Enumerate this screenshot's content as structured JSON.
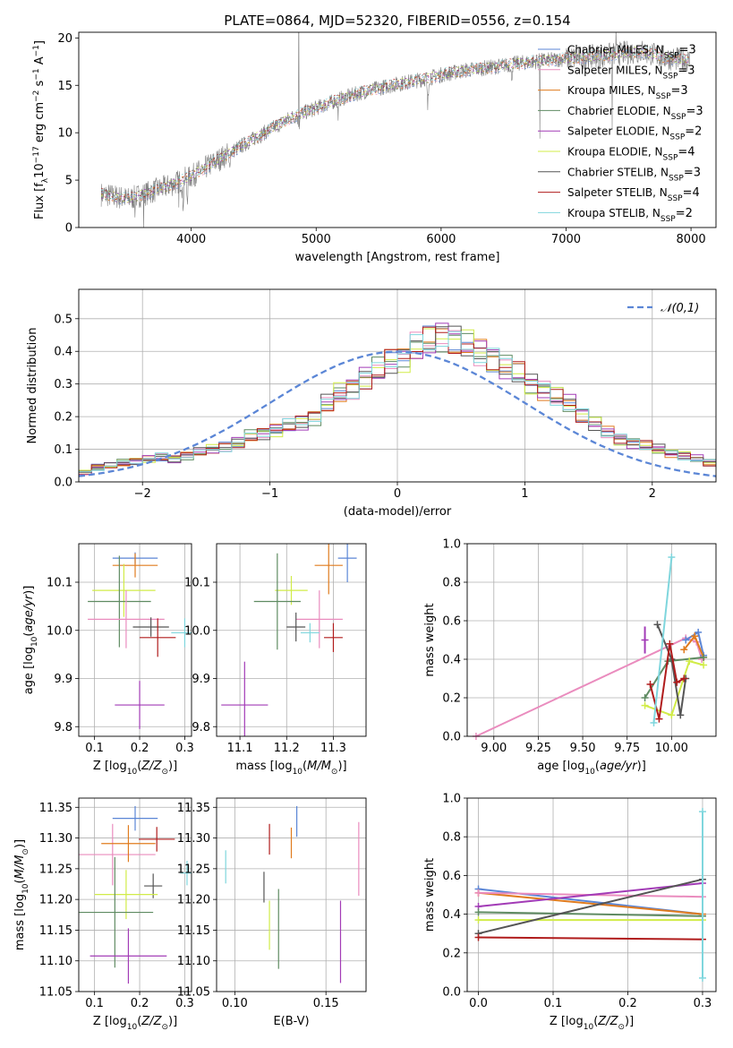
{
  "figure_title": "PLATE=0864, MJD=52320, FIBERID=0556, z=0.154",
  "colors": {
    "Chabrier MILES": "#5b86d6",
    "Salpeter MILES": "#ea8cbe",
    "Kroupa MILES": "#e07b1e",
    "Chabrier ELODIE": "#5f8b62",
    "Salpeter ELODIE": "#a23bb6",
    "Kroupa ELODIE": "#d1ec48",
    "Chabrier STELIB": "#555555",
    "Salpeter STELIB": "#b01c1c",
    "Kroupa STELIB": "#7fd6dd",
    "normal": "#5b86d6",
    "data": "#808080"
  },
  "chart_data": [
    {
      "id": "spectrum",
      "type": "line",
      "title": "PLATE=0864, MJD=52320, FIBERID=0556, z=0.154",
      "xlabel": "wavelength [Angstrom, rest frame]",
      "ylabel": "Flux [f_λ 10^-17 erg cm^-2 s^-1 A^-1]",
      "xlim": [
        3100,
        8200
      ],
      "ylim": [
        0,
        20.6
      ],
      "xticks": [
        4000,
        5000,
        6000,
        7000,
        8000
      ],
      "yticks": [
        0,
        5,
        10,
        15,
        20
      ],
      "grid": false,
      "legend": "top-right",
      "series": [
        {
          "name": "Chabrier MILES, N_SSP=3"
        },
        {
          "name": "Salpeter MILES, N_SSP=3"
        },
        {
          "name": "Kroupa MILES, N_SSP=3"
        },
        {
          "name": "Chabrier ELODIE, N_SSP=3"
        },
        {
          "name": "Salpeter ELODIE, N_SSP=2"
        },
        {
          "name": "Kroupa ELODIE, N_SSP=4"
        },
        {
          "name": "Chabrier STELIB, N_SSP=3"
        },
        {
          "name": "Salpeter STELIB, N_SSP=4"
        },
        {
          "name": "Kroupa STELIB, N_SSP=2"
        }
      ],
      "continuum": {
        "x": [
          3300,
          3500,
          3800,
          4000,
          4200,
          4400,
          4600,
          4800,
          5000,
          5200,
          5400,
          5600,
          5800,
          6000,
          6200,
          6400,
          6600,
          6800,
          7000,
          7200,
          7400,
          7600,
          7800,
          8000
        ],
        "y": [
          3.5,
          3.0,
          4.3,
          5.4,
          7.0,
          8.6,
          10.1,
          11.6,
          12.6,
          13.6,
          14.4,
          15.0,
          15.5,
          16.1,
          16.6,
          16.9,
          17.3,
          17.6,
          17.8,
          18.0,
          18.3,
          18.6,
          17.9,
          17.6
        ]
      }
    },
    {
      "id": "residuals",
      "type": "step",
      "xlabel": "(data-model)/error",
      "ylabel": "Normed distribution",
      "xlim": [
        -2.5,
        2.5
      ],
      "ylim": [
        0,
        0.59
      ],
      "xticks": [
        -2,
        -1,
        0,
        1,
        2
      ],
      "yticks": [
        0.0,
        0.1,
        0.2,
        0.3,
        0.4,
        0.5
      ],
      "grid": true,
      "legend": "top-right",
      "legend_label": "𝒩(0,1)",
      "bin_width": 0.1,
      "x_start": -2.5,
      "base_values": [
        0.03,
        0.045,
        0.05,
        0.06,
        0.065,
        0.07,
        0.075,
        0.07,
        0.08,
        0.09,
        0.1,
        0.11,
        0.12,
        0.14,
        0.15,
        0.16,
        0.17,
        0.18,
        0.2,
        0.24,
        0.27,
        0.29,
        0.32,
        0.34,
        0.37,
        0.38,
        0.41,
        0.43,
        0.45,
        0.44,
        0.42,
        0.4,
        0.38,
        0.35,
        0.33,
        0.3,
        0.28,
        0.26,
        0.24,
        0.21,
        0.18,
        0.15,
        0.13,
        0.12,
        0.11,
        0.1,
        0.09,
        0.08,
        0.07,
        0.06,
        0.055,
        0.05,
        0.045,
        0.04,
        0.038,
        0.035,
        0.03,
        0.028,
        0.025,
        0.02
      ]
    },
    {
      "id": "age_vs_Z",
      "type": "errorbar",
      "xlabel": "Z [log10(Z/Z⊙)]",
      "ylabel": "age [log10(age/yr)]",
      "xlim": [
        0.065,
        0.315
      ],
      "ylim": [
        9.78,
        10.18
      ],
      "xticks": [
        0.1,
        0.2,
        0.3
      ],
      "yticks": [
        9.8,
        9.9,
        10.0,
        10.1
      ],
      "grid": true,
      "points": [
        {
          "s": "Chabrier MILES",
          "x": 0.19,
          "xerr": 0.05,
          "y": 10.15,
          "yerr": 0.012
        },
        {
          "s": "Kroupa MILES",
          "x": 0.19,
          "xerr": 0.05,
          "y": 10.135,
          "yerr": 0.025
        },
        {
          "s": "Kroupa ELODIE",
          "x": 0.165,
          "xerr": 0.07,
          "y": 10.083,
          "yerr": 0.055
        },
        {
          "s": "Chabrier ELODIE",
          "x": 0.155,
          "xerr": 0.07,
          "y": 10.06,
          "yerr": 0.095
        },
        {
          "s": "Salpeter MILES",
          "x": 0.17,
          "xerr": 0.085,
          "y": 10.023,
          "yerr": 0.06
        },
        {
          "s": "Chabrier STELIB",
          "x": 0.225,
          "xerr": 0.04,
          "y": 10.007,
          "yerr": 0.02
        },
        {
          "s": "Salpeter STELIB",
          "x": 0.24,
          "xerr": 0.04,
          "y": 9.985,
          "yerr": 0.04
        },
        {
          "s": "Kroupa STELIB",
          "x": 0.3,
          "xerr": 0.03,
          "y": 9.995,
          "yerr": 0.03
        },
        {
          "s": "Salpeter ELODIE",
          "x": 0.2,
          "xerr": 0.055,
          "y": 9.845,
          "yerr": 0.05
        }
      ]
    },
    {
      "id": "age_vs_mass",
      "type": "errorbar",
      "xlabel": "mass [log10(M/M⊙)]",
      "ylabel": "",
      "xlim": [
        11.05,
        11.37
      ],
      "ylim": [
        9.78,
        10.18
      ],
      "xticks": [
        11.1,
        11.2,
        11.3
      ],
      "yticks": [
        9.8,
        9.9,
        10.0,
        10.1
      ],
      "grid": true,
      "points": [
        {
          "s": "Chabrier MILES",
          "x": 11.33,
          "xerr": 0.02,
          "y": 10.15,
          "yerr": 0.05
        },
        {
          "s": "Kroupa MILES",
          "x": 11.29,
          "xerr": 0.03,
          "y": 10.135,
          "yerr": 0.06
        },
        {
          "s": "Kroupa ELODIE",
          "x": 11.21,
          "xerr": 0.035,
          "y": 10.083,
          "yerr": 0.03
        },
        {
          "s": "Chabrier ELODIE",
          "x": 11.18,
          "xerr": 0.05,
          "y": 10.06,
          "yerr": 0.1
        },
        {
          "s": "Salpeter MILES",
          "x": 11.27,
          "xerr": 0.05,
          "y": 10.023,
          "yerr": 0.06
        },
        {
          "s": "Chabrier STELIB",
          "x": 11.22,
          "xerr": 0.02,
          "y": 10.007,
          "yerr": 0.03
        },
        {
          "s": "Salpeter STELIB",
          "x": 11.3,
          "xerr": 0.02,
          "y": 9.985,
          "yerr": 0.03
        },
        {
          "s": "Kroupa STELIB",
          "x": 11.25,
          "xerr": 0.02,
          "y": 9.995,
          "yerr": 0.02
        },
        {
          "s": "Salpeter ELODIE",
          "x": 11.11,
          "xerr": 0.05,
          "y": 9.845,
          "yerr": 0.09
        }
      ]
    },
    {
      "id": "weight_vs_age",
      "type": "line",
      "xlabel": "age [log10(age/yr)]",
      "ylabel": "mass weight",
      "xlim": [
        8.85,
        10.25
      ],
      "ylim": [
        0,
        1.0
      ],
      "xticks": [
        9.0,
        9.25,
        9.5,
        9.75,
        10.0
      ],
      "yticks": [
        0.0,
        0.2,
        0.4,
        0.6,
        0.8,
        1.0
      ],
      "grid": true,
      "series": [
        {
          "s": "Salpeter MILES",
          "x": [
            8.9,
            10.08,
            10.14,
            10.17
          ],
          "y": [
            0.0,
            0.51,
            0.49,
            0.4
          ]
        },
        {
          "s": "Chabrier MILES",
          "x": [
            10.08,
            10.15,
            10.18
          ],
          "y": [
            0.5,
            0.54,
            0.42
          ]
        },
        {
          "s": "Kroupa MILES",
          "x": [
            10.07,
            10.13,
            10.18
          ],
          "y": [
            0.45,
            0.52,
            0.41
          ]
        },
        {
          "s": "Chabrier ELODIE",
          "x": [
            9.85,
            9.98,
            10.18
          ],
          "y": [
            0.2,
            0.39,
            0.41
          ]
        },
        {
          "s": "Salpeter ELODIE",
          "x": [
            9.85
          ],
          "y": [
            0.5
          ]
        },
        {
          "s": "Kroupa ELODIE",
          "x": [
            9.85,
            10.0,
            10.1,
            10.18
          ],
          "y": [
            0.16,
            0.11,
            0.39,
            0.37
          ]
        },
        {
          "s": "Chabrier STELIB",
          "x": [
            9.92,
            10.0,
            10.05,
            10.08
          ],
          "y": [
            0.58,
            0.4,
            0.11,
            0.3
          ]
        },
        {
          "s": "Salpeter STELIB",
          "x": [
            9.88,
            9.93,
            9.99,
            10.03,
            10.07
          ],
          "y": [
            0.27,
            0.09,
            0.48,
            0.28,
            0.3
          ]
        },
        {
          "s": "Kroupa STELIB",
          "x": [
            9.9,
            10.0
          ],
          "y": [
            0.07,
            0.93
          ]
        }
      ],
      "errorbars": [
        {
          "s": "Salpeter ELODIE",
          "x": 9.85,
          "y": 0.5,
          "yerr": 0.07
        }
      ]
    },
    {
      "id": "mass_vs_Z",
      "type": "errorbar",
      "xlabel": "Z [log10(Z/Z⊙)]",
      "ylabel": "mass [log10(M/M⊙)]",
      "xlim": [
        0.065,
        0.315
      ],
      "ylim": [
        11.05,
        11.365
      ],
      "xticks": [
        0.1,
        0.2,
        0.3
      ],
      "yticks": [
        11.05,
        11.1,
        11.15,
        11.2,
        11.25,
        11.3,
        11.35
      ],
      "grid": true,
      "points": [
        {
          "s": "Chabrier MILES",
          "x": 0.19,
          "xerr": 0.05,
          "y": 11.332,
          "yerr": 0.02
        },
        {
          "s": "Salpeter MILES",
          "x": 0.14,
          "xerr": 0.095,
          "y": 11.273,
          "yerr": 0.05
        },
        {
          "s": "Kroupa MILES",
          "x": 0.175,
          "xerr": 0.06,
          "y": 11.291,
          "yerr": 0.03
        },
        {
          "s": "Salpeter STELIB",
          "x": 0.238,
          "xerr": 0.04,
          "y": 11.298,
          "yerr": 0.02
        },
        {
          "s": "Chabrier STELIB",
          "x": 0.23,
          "xerr": 0.02,
          "y": 11.222,
          "yerr": 0.02
        },
        {
          "s": "Kroupa ELODIE",
          "x": 0.17,
          "xerr": 0.07,
          "y": 11.208,
          "yerr": 0.04
        },
        {
          "s": "Chabrier ELODIE",
          "x": 0.145,
          "xerr": 0.085,
          "y": 11.179,
          "yerr": 0.09
        },
        {
          "s": "Salpeter ELODIE",
          "x": 0.175,
          "xerr": 0.085,
          "y": 11.108,
          "yerr": 0.045
        },
        {
          "s": "Kroupa STELIB",
          "x": 0.305,
          "xerr": 0.015,
          "y": 11.243,
          "yerr": 0.02
        }
      ]
    },
    {
      "id": "mass_vs_ebv",
      "type": "errorbar",
      "xlabel": "E(B-V)",
      "ylabel": "",
      "xlim": [
        0.09,
        0.172
      ],
      "ylim": [
        11.05,
        11.365
      ],
      "xticks": [
        0.1,
        0.15
      ],
      "yticks": [
        11.05,
        11.1,
        11.15,
        11.2,
        11.25,
        11.3,
        11.35
      ],
      "grid": true,
      "points": [
        {
          "s": "Kroupa STELIB",
          "x": 0.095,
          "y": 11.253,
          "yerr": 0.027
        },
        {
          "s": "Chabrier STELIB",
          "x": 0.116,
          "y": 11.22,
          "yerr": 0.025
        },
        {
          "s": "Salpeter STELIB",
          "x": 0.119,
          "y": 11.298,
          "yerr": 0.025
        },
        {
          "s": "Kroupa ELODIE",
          "x": 0.119,
          "y": 11.158,
          "yerr": 0.04
        },
        {
          "s": "Chabrier ELODIE",
          "x": 0.124,
          "y": 11.152,
          "yerr": 0.065
        },
        {
          "s": "Kroupa MILES",
          "x": 0.131,
          "y": 11.292,
          "yerr": 0.025
        },
        {
          "s": "Chabrier MILES",
          "x": 0.134,
          "y": 11.327,
          "yerr": 0.025
        },
        {
          "s": "Salpeter ELODIE",
          "x": 0.158,
          "y": 11.131,
          "yerr": 0.067
        },
        {
          "s": "Salpeter MILES",
          "x": 0.168,
          "y": 11.266,
          "yerr": 0.06
        }
      ]
    },
    {
      "id": "weight_vs_Z",
      "type": "line",
      "xlabel": "Z [log10(Z/Z⊙)]",
      "ylabel": "mass weight",
      "xlim": [
        -0.015,
        0.318
      ],
      "ylim": [
        0,
        1.0
      ],
      "xticks": [
        0.0,
        0.1,
        0.2,
        0.3
      ],
      "yticks": [
        0.0,
        0.2,
        0.4,
        0.6,
        0.8,
        1.0
      ],
      "grid": true,
      "series": [
        {
          "s": "Chabrier MILES",
          "x": [
            0.0,
            0.3
          ],
          "y": [
            0.53,
            0.4
          ]
        },
        {
          "s": "Kroupa MILES",
          "x": [
            0.0,
            0.3
          ],
          "y": [
            0.51,
            0.4
          ]
        },
        {
          "s": "Salpeter MILES",
          "x": [
            0.0,
            0.3
          ],
          "y": [
            0.51,
            0.49
          ]
        },
        {
          "s": "Salpeter ELODIE",
          "x": [
            0.0,
            0.3
          ],
          "y": [
            0.44,
            0.56
          ]
        },
        {
          "s": "Chabrier ELODIE",
          "x": [
            0.0,
            0.3
          ],
          "y": [
            0.41,
            0.39
          ]
        },
        {
          "s": "Kroupa ELODIE",
          "x": [
            0.0,
            0.3
          ],
          "y": [
            0.37,
            0.37
          ]
        },
        {
          "s": "Chabrier STELIB",
          "x": [
            0.0,
            0.3
          ],
          "y": [
            0.3,
            0.58
          ]
        },
        {
          "s": "Salpeter STELIB",
          "x": [
            0.0,
            0.3
          ],
          "y": [
            0.28,
            0.27
          ]
        },
        {
          "s": "Kroupa STELIB",
          "x": [
            0.3,
            0.3
          ],
          "y": [
            0.07,
            0.93
          ]
        }
      ]
    }
  ]
}
